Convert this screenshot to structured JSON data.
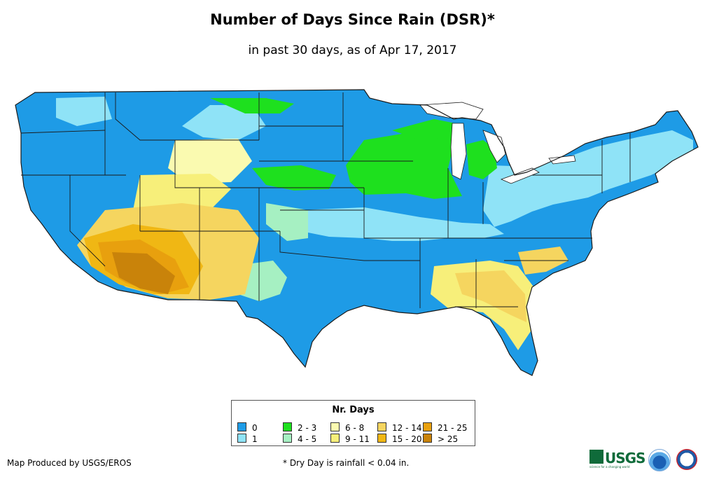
{
  "title": "Number of Days Since Rain (DSR)*",
  "subtitle": "in past 30 days, as of Apr 17, 2017",
  "legend": {
    "title": "Nr. Days",
    "items": [
      {
        "label": "0",
        "color": "#1e9be6"
      },
      {
        "label": "1",
        "color": "#8fe3f7"
      },
      {
        "label": "2 - 3",
        "color": "#1ee01e"
      },
      {
        "label": "4 - 5",
        "color": "#a6f0c2"
      },
      {
        "label": "6 - 8",
        "color": "#fafab0"
      },
      {
        "label": "9 - 11",
        "color": "#f7ef7a"
      },
      {
        "label": "12 - 14",
        "color": "#f5d55f"
      },
      {
        "label": "15 - 20",
        "color": "#f0b714"
      },
      {
        "label": "21 - 25",
        "color": "#e8a00e"
      },
      {
        "label": "> 25",
        "color": "#c9830a"
      }
    ]
  },
  "footer": {
    "producer": "Map Produced by USGS/EROS",
    "footnote": "* Dry Day is rainfall < 0.04 in."
  },
  "logos": {
    "usgs_text": "USGS",
    "usgs_tagline": "science for a changing world",
    "agencies": [
      "USGS",
      "NOAA",
      "National Weather Service"
    ]
  },
  "colors": {
    "state_border": "#1a1a1a",
    "background": "#ffffff"
  }
}
